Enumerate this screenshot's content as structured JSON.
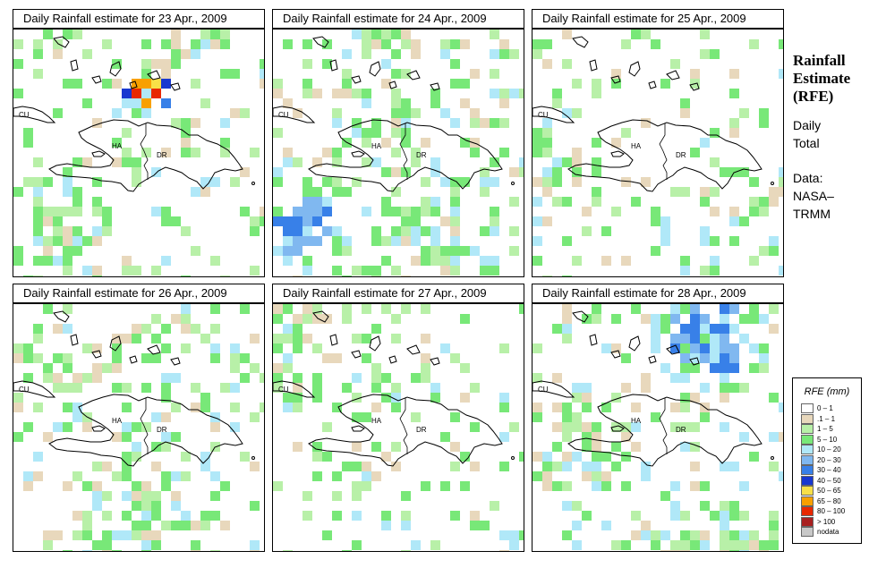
{
  "panels": [
    {
      "title": "Daily Rainfall estimate for  23 Apr., 2009"
    },
    {
      "title": "Daily Rainfall estimate for  24 Apr., 2009"
    },
    {
      "title": "Daily Rainfall estimate for  25 Apr., 2009"
    },
    {
      "title": "Daily Rainfall estimate for  26 Apr., 2009"
    },
    {
      "title": "Daily Rainfall estimate for  27 Apr., 2009"
    },
    {
      "title": "Daily Rainfall estimate for  28 Apr., 2009"
    }
  ],
  "map_labels": {
    "cuba": "CU",
    "haiti": "HA",
    "dominican_republic": "DR"
  },
  "side": {
    "title_line1": "Rainfall",
    "title_line2": "Estimate",
    "title_line3": "(RFE)",
    "total_line1": "Daily",
    "total_line2": "Total",
    "data_line1": "Data:",
    "data_line2": "NASA–",
    "data_line3": "TRMM"
  },
  "legend": {
    "title": "RFE (mm)",
    "items": [
      {
        "label": "0 – 1",
        "color": "#ffffff"
      },
      {
        "label": ".1 – 1",
        "color": "#e8d8bc"
      },
      {
        "label": "1 – 5",
        "color": "#b8f0a8"
      },
      {
        "label": "5 – 10",
        "color": "#78e878"
      },
      {
        "label": "10 – 20",
        "color": "#b0e8f8"
      },
      {
        "label": "20 – 30",
        "color": "#80b8f0"
      },
      {
        "label": "30 – 40",
        "color": "#3880e8"
      },
      {
        "label": "40 – 50",
        "color": "#1838d0"
      },
      {
        "label": "50 – 65",
        "color": "#f8e048"
      },
      {
        "label": "65 – 80",
        "color": "#f8a000"
      },
      {
        "label": "80 – 100",
        "color": "#e82800"
      },
      {
        "label": "> 100",
        "color": "#a82020"
      },
      {
        "label": "nodata",
        "color": "#c8c8c8"
      }
    ]
  }
}
